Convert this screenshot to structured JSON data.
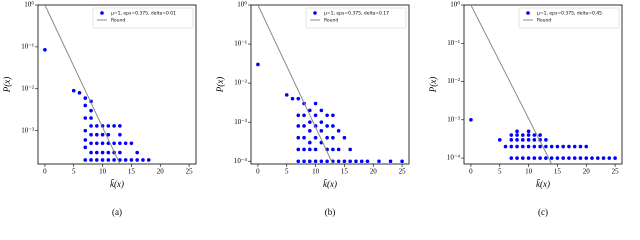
{
  "chart_data": [
    {
      "type": "scatter",
      "caption": "(a)",
      "xlabel": "k̃(x)",
      "ylabel": "P(x)",
      "log_y": true,
      "legend": "upper right",
      "xlim": [
        -1.2,
        26.2
      ],
      "xticks": [
        0,
        5,
        10,
        15,
        20,
        25
      ],
      "ylim": [
        0.00016,
        1
      ],
      "yticks": [
        {
          "value": 0.001,
          "label": "10⁻³"
        },
        {
          "value": 0.01,
          "label": "10⁻²"
        },
        {
          "value": 0.1,
          "label": "10⁻¹"
        },
        {
          "value": 1,
          "label": "10⁰"
        }
      ],
      "series": [
        {
          "name": "μ=1, eps=0.375, delta=0.01",
          "color": "#0000ff",
          "x": [
            0,
            5,
            6,
            7,
            7,
            7,
            7,
            7,
            7,
            7,
            8,
            8,
            8,
            8,
            8,
            8,
            8,
            8,
            9,
            9,
            9,
            9,
            9,
            10,
            10,
            10,
            10,
            10,
            11,
            11,
            11,
            11,
            11,
            12,
            12,
            12,
            12,
            13,
            13,
            13,
            13,
            13,
            14,
            14,
            15,
            15,
            16,
            16,
            17,
            18
          ],
          "values": [
            0.085,
            0.009,
            0.008,
            0.006,
            0.004,
            0.002,
            0.001,
            0.0006,
            0.0004,
            0.0002,
            0.005,
            0.003,
            0.002,
            0.0013,
            0.0008,
            0.0005,
            0.0003,
            0.0002,
            0.0013,
            0.0008,
            0.0005,
            0.0003,
            0.0002,
            0.0013,
            0.0008,
            0.0005,
            0.0003,
            0.0002,
            0.0013,
            0.0008,
            0.0005,
            0.0003,
            0.0002,
            0.0013,
            0.0005,
            0.0003,
            0.0002,
            0.0013,
            0.0008,
            0.0005,
            0.0003,
            0.0002,
            0.0005,
            0.0002,
            0.0005,
            0.0002,
            0.0003,
            0.0002,
            0.0002,
            0.0002
          ]
        },
        {
          "name": "Round",
          "type": "line",
          "color": "#808080",
          "x": [
            0,
            13
          ],
          "values": [
            1,
            0.00016
          ]
        }
      ]
    },
    {
      "type": "scatter",
      "caption": "(b)",
      "xlabel": "k̃(x)",
      "ylabel": "P(x)",
      "log_y": true,
      "legend": "upper right",
      "xlim": [
        -1.2,
        26.2
      ],
      "xticks": [
        0,
        5,
        10,
        15,
        20,
        25
      ],
      "ylim": [
        8.5e-05,
        1
      ],
      "yticks": [
        {
          "value": 0.0001,
          "label": "10⁻⁴"
        },
        {
          "value": 0.001,
          "label": "10⁻³"
        },
        {
          "value": 0.01,
          "label": "10⁻²"
        },
        {
          "value": 0.1,
          "label": "10⁻¹"
        },
        {
          "value": 1,
          "label": "10⁰"
        }
      ],
      "series": [
        {
          "name": "μ=1, eps=0.375, delta=0.17",
          "color": "#0000ff",
          "x": [
            0,
            5,
            6,
            7,
            7,
            7,
            7,
            7,
            7,
            8,
            8,
            8,
            8,
            8,
            8,
            9,
            9,
            9,
            9,
            9,
            9,
            10,
            10,
            10,
            10,
            10,
            10,
            11,
            11,
            11,
            11,
            11,
            12,
            12,
            12,
            12,
            12,
            13,
            13,
            13,
            13,
            13,
            14,
            14,
            14,
            15,
            15,
            16,
            16,
            17,
            18,
            19,
            21,
            23,
            25
          ],
          "values": [
            0.03,
            0.005,
            0.004,
            0.004,
            0.0015,
            0.0008,
            0.0004,
            0.0002,
            0.0001,
            0.003,
            0.0015,
            0.0008,
            0.0004,
            0.0002,
            0.0001,
            0.002,
            0.001,
            0.0006,
            0.0003,
            0.0002,
            0.0001,
            0.003,
            0.0015,
            0.0008,
            0.0004,
            0.0002,
            0.0001,
            0.002,
            0.001,
            0.0006,
            0.0003,
            0.0001,
            0.0015,
            0.0008,
            0.0004,
            0.0002,
            0.0001,
            0.0015,
            0.0008,
            0.0004,
            0.0002,
            0.0001,
            0.0006,
            0.0002,
            0.0001,
            0.0004,
            0.0001,
            0.0002,
            0.0001,
            0.0001,
            0.0001,
            0.0001,
            0.0001,
            0.0001,
            0.0001
          ]
        },
        {
          "name": "Round",
          "type": "line",
          "color": "#808080",
          "x": [
            0,
            13
          ],
          "values": [
            1,
            8.5e-05
          ]
        }
      ]
    },
    {
      "type": "scatter",
      "caption": "(c)",
      "xlabel": "k̃(x)",
      "ylabel": "P(x)",
      "log_y": true,
      "legend": "upper right",
      "xlim": [
        -1.2,
        26.2
      ],
      "xticks": [
        0,
        5,
        10,
        15,
        20,
        25
      ],
      "ylim": [
        7e-05,
        1
      ],
      "yticks": [
        {
          "value": 0.0001,
          "label": "10⁻⁴"
        },
        {
          "value": 0.001,
          "label": "10⁻³"
        },
        {
          "value": 0.01,
          "label": "10⁻²"
        },
        {
          "value": 0.1,
          "label": "10⁻¹"
        },
        {
          "value": 1,
          "label": "10⁰"
        }
      ],
      "series": [
        {
          "name": "μ=1, eps=0.375, delta=0.45",
          "color": "#0000ff",
          "x": [
            0,
            5,
            6,
            7,
            7,
            7,
            7,
            8,
            8,
            8,
            8,
            8,
            9,
            9,
            9,
            9,
            10,
            10,
            10,
            10,
            10,
            11,
            11,
            11,
            11,
            12,
            12,
            12,
            12,
            13,
            13,
            13,
            14,
            14,
            15,
            15,
            16,
            16,
            17,
            17,
            18,
            18,
            19,
            19,
            20,
            20,
            21,
            22,
            23,
            24,
            25
          ],
          "values": [
            0.001,
            0.0003,
            0.0002,
            0.0004,
            0.0003,
            0.0002,
            0.0001,
            0.0005,
            0.0004,
            0.0003,
            0.0002,
            0.0001,
            0.0004,
            0.0003,
            0.0002,
            0.0001,
            0.0005,
            0.0004,
            0.0003,
            0.0002,
            0.0001,
            0.0004,
            0.0003,
            0.0002,
            0.0001,
            0.0004,
            0.0003,
            0.0002,
            0.0001,
            0.0003,
            0.0002,
            0.0001,
            0.0002,
            0.0001,
            0.0002,
            0.0001,
            0.0002,
            0.0001,
            0.0002,
            0.0001,
            0.0002,
            0.0001,
            0.0002,
            0.0001,
            0.0002,
            0.0001,
            0.0001,
            0.0001,
            0.0001,
            0.0001,
            0.0001
          ]
        },
        {
          "name": "Round",
          "type": "line",
          "color": "#808080",
          "x": [
            0,
            14
          ],
          "values": [
            1,
            7e-05
          ]
        }
      ]
    }
  ]
}
